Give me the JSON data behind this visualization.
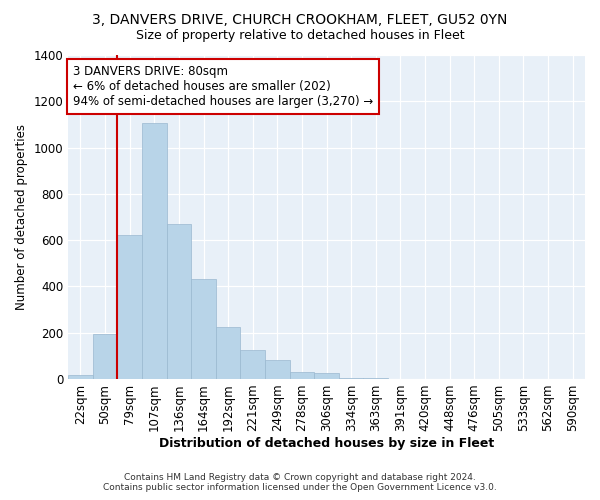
{
  "title": "3, DANVERS DRIVE, CHURCH CROOKHAM, FLEET, GU52 0YN",
  "subtitle": "Size of property relative to detached houses in Fleet",
  "xlabel": "Distribution of detached houses by size in Fleet",
  "ylabel": "Number of detached properties",
  "bar_color": "#b8d4e8",
  "bar_edge_color": "#9ab8d0",
  "categories": [
    "22sqm",
    "50sqm",
    "79sqm",
    "107sqm",
    "136sqm",
    "164sqm",
    "192sqm",
    "221sqm",
    "249sqm",
    "278sqm",
    "306sqm",
    "334sqm",
    "363sqm",
    "391sqm",
    "420sqm",
    "448sqm",
    "476sqm",
    "505sqm",
    "533sqm",
    "562sqm",
    "590sqm"
  ],
  "values": [
    15,
    195,
    620,
    1105,
    670,
    430,
    225,
    125,
    80,
    30,
    25,
    5,
    3,
    0,
    0,
    0,
    0,
    0,
    0,
    0,
    0
  ],
  "ylim": [
    0,
    1400
  ],
  "yticks": [
    0,
    200,
    400,
    600,
    800,
    1000,
    1200,
    1400
  ],
  "property_line_index": 2,
  "annotation_title": "3 DANVERS DRIVE: 80sqm",
  "annotation_line1": "← 6% of detached houses are smaller (202)",
  "annotation_line2": "94% of semi-detached houses are larger (3,270) →",
  "annotation_box_color": "#ffffff",
  "annotation_box_edge": "#cc0000",
  "property_line_color": "#cc0000",
  "footer1": "Contains HM Land Registry data © Crown copyright and database right 2024.",
  "footer2": "Contains public sector information licensed under the Open Government Licence v3.0."
}
